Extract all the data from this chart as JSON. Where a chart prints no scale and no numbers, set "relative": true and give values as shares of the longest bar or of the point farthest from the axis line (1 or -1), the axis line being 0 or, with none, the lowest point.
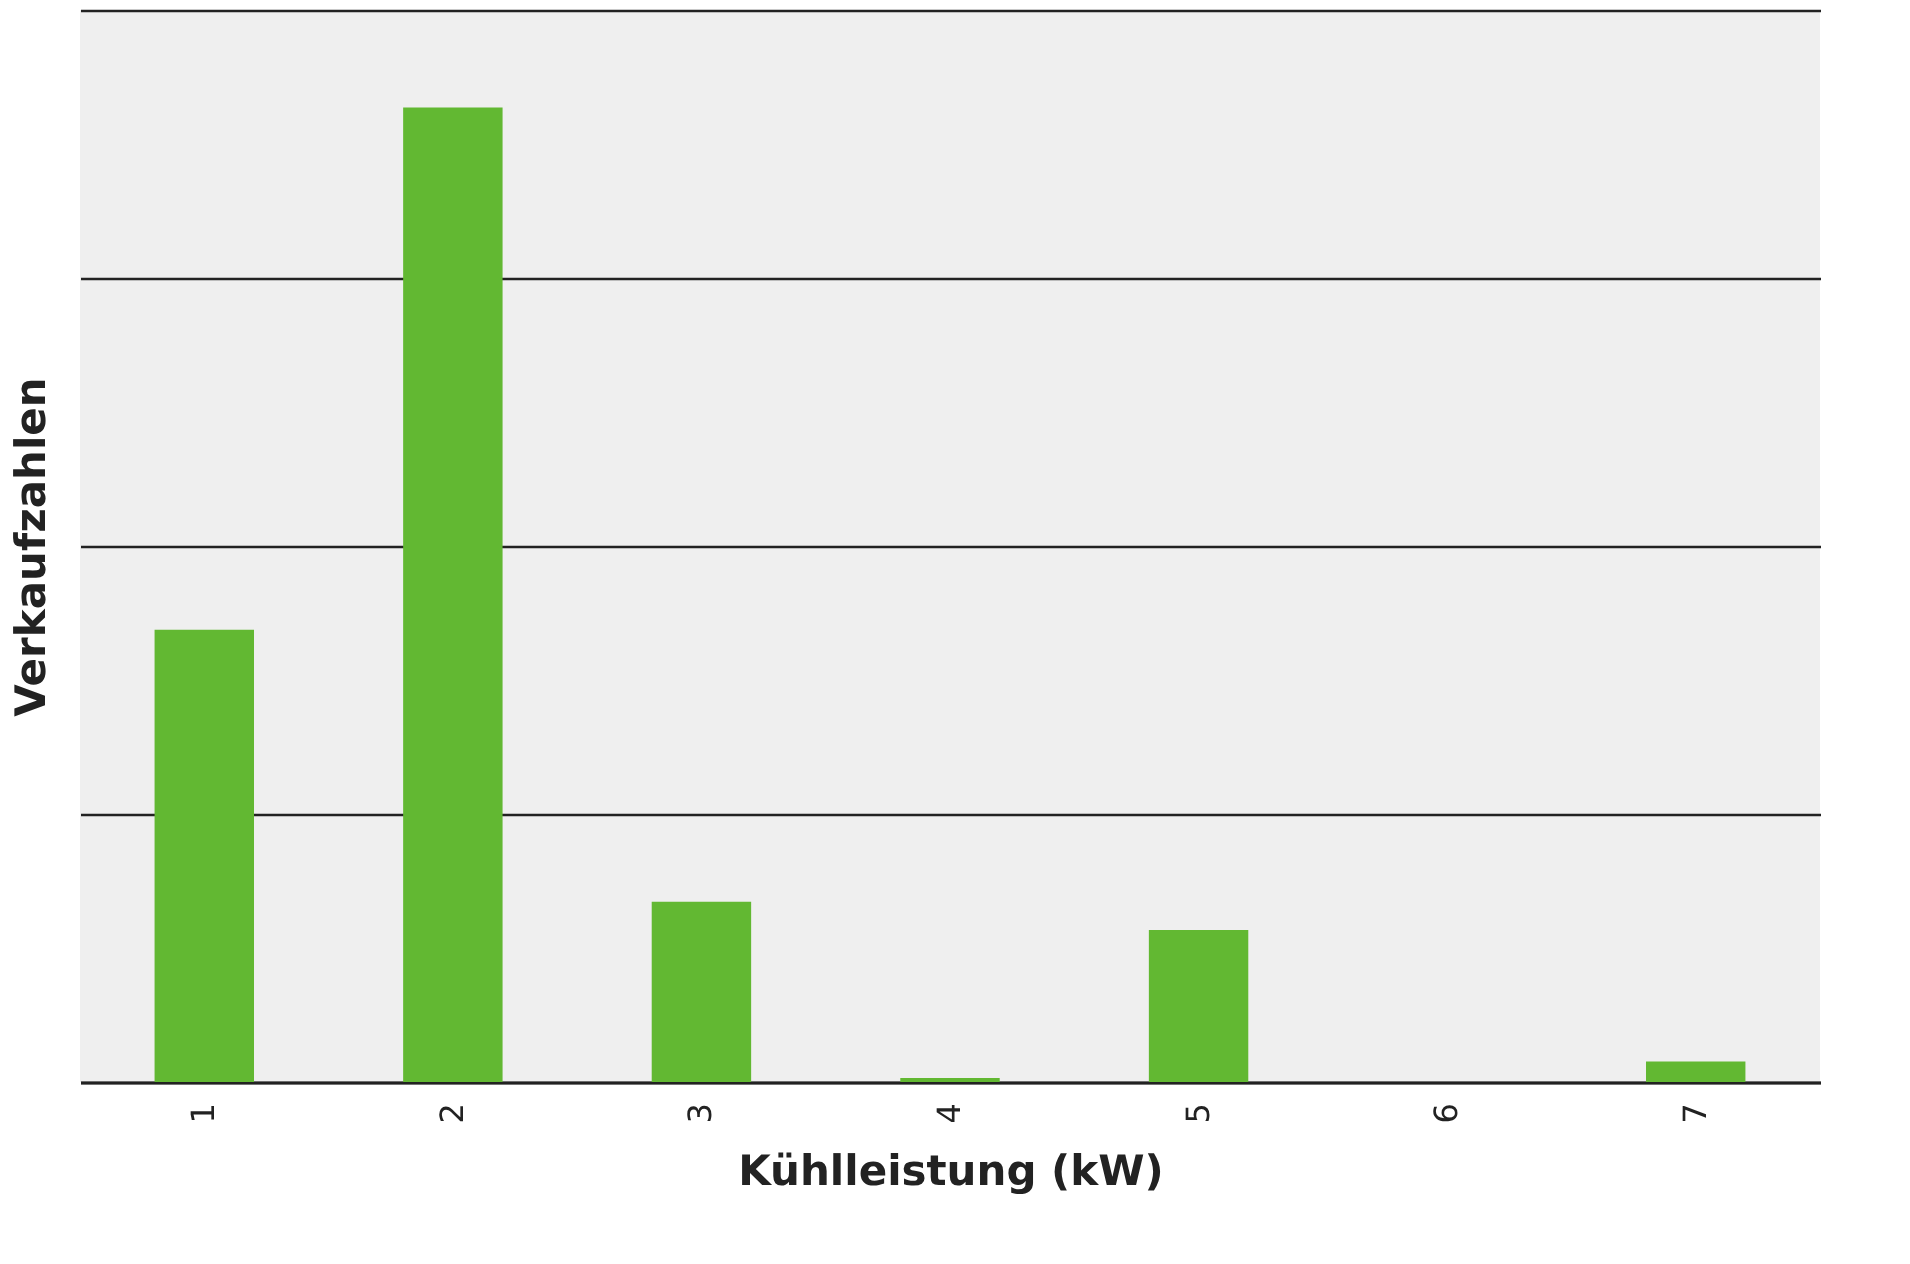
{
  "chart_data": {
    "type": "bar",
    "xlabel": "Kühlleistung (kW)",
    "ylabel": "Verkaufzahlen",
    "categories": [
      "1",
      "2",
      "3",
      "4",
      "5",
      "6",
      "7"
    ],
    "values": [
      0.464,
      1,
      0.185,
      0.004,
      0.156,
      0,
      0.021
    ],
    "color": "#62b832",
    "relative": true,
    "grid": "y"
  }
}
